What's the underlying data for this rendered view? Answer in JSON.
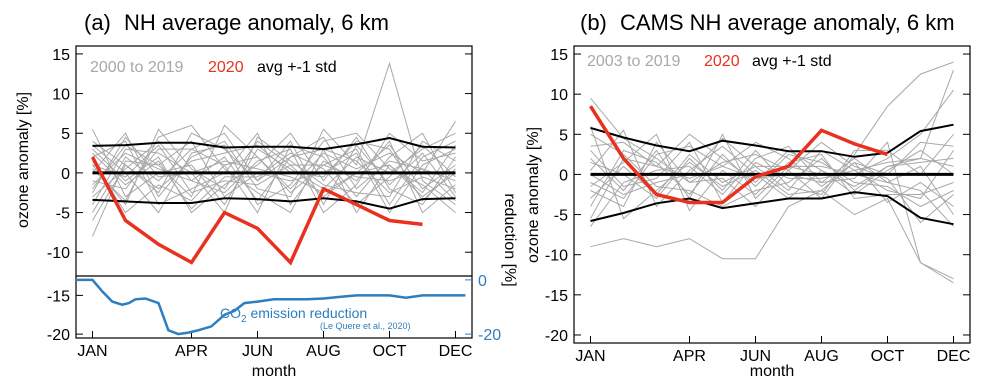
{
  "colors": {
    "gray": "#a8a8a8",
    "red": "#e8311e",
    "black": "#000000",
    "blue": "#2e7dbf"
  },
  "chart_data": [
    {
      "type": "line",
      "panel": "(a)",
      "title": "NH average anomaly, 6 km",
      "xlabel": "month",
      "ylabel": "ozone anomaly [%]",
      "ylim": [
        -13,
        16
      ],
      "xlim": [
        0.5,
        12.5
      ],
      "yticks": [
        "15",
        "10",
        "5",
        "0",
        "-5",
        "-10"
      ],
      "xticks": [
        "JAN",
        "APR",
        "JUN",
        "AUG",
        "OCT",
        "DEC"
      ],
      "legend": {
        "background_label": "2000 to 2019",
        "highlight_label": "2020",
        "avg_label": "avg +-1 std"
      },
      "x": [
        1,
        2,
        3,
        4,
        5,
        6,
        7,
        8,
        9,
        10,
        11,
        12
      ],
      "series": [
        {
          "name": "2020",
          "values": [
            2.0,
            -6.0,
            -9.0,
            -11.3,
            -5.0,
            -7.0,
            -11.3,
            -2.0,
            -4.0,
            -6.0,
            -6.5,
            null
          ]
        },
        {
          "name": "avg +-1 std",
          "role": "mean",
          "values": [
            0,
            0,
            0,
            0,
            0,
            0,
            0,
            0,
            0,
            0,
            0,
            0
          ]
        },
        {
          "name": "avg +-1 std",
          "role": "plus_std",
          "values": [
            3.4,
            3.5,
            3.8,
            3.8,
            3.2,
            3.3,
            3.3,
            3.0,
            3.6,
            4.4,
            3.3,
            3.2
          ]
        },
        {
          "name": "avg +-1 std",
          "role": "minus_std",
          "values": [
            -3.4,
            -3.6,
            -3.8,
            -3.8,
            -3.2,
            -3.3,
            -3.6,
            -3.2,
            -3.6,
            -4.5,
            -3.3,
            -3.2
          ]
        }
      ],
      "background_years": [
        [
          4.0,
          1.0,
          -2.5,
          5.0,
          3.0,
          -1.0,
          2.0,
          4.5,
          -2.0,
          1.5,
          0.5,
          -1.0
        ],
        [
          -2.0,
          3.5,
          1.0,
          -3.0,
          6.0,
          2.0,
          -2.5,
          1.0,
          3.0,
          -4.0,
          2.0,
          4.0
        ],
        [
          1.0,
          -4.0,
          5.5,
          0.5,
          -2.0,
          4.0,
          1.0,
          -3.0,
          0.0,
          3.5,
          -2.0,
          1.0
        ],
        [
          -5.0,
          2.0,
          -1.0,
          3.0,
          1.0,
          -5.0,
          3.5,
          2.0,
          -3.0,
          2.0,
          5.0,
          -2.5
        ],
        [
          3.0,
          -1.0,
          2.0,
          -5.0,
          -1.5,
          1.0,
          5.0,
          -1.0,
          4.5,
          -2.0,
          -4.0,
          2.0
        ],
        [
          0.0,
          5.0,
          -3.0,
          2.0,
          4.0,
          -2.0,
          -3.0,
          5.5,
          1.0,
          13.8,
          -1.0,
          -4.0
        ],
        [
          5.5,
          -3.0,
          0.0,
          1.0,
          -4.0,
          3.0,
          0.5,
          -2.0,
          2.0,
          0.0,
          3.0,
          5.0
        ],
        [
          -3.0,
          0.5,
          4.0,
          -1.0,
          2.0,
          -3.5,
          2.0,
          3.0,
          -5.0,
          1.0,
          -3.0,
          0.0
        ],
        [
          -8.0,
          1.5,
          1.0,
          4.0,
          -3.0,
          0.0,
          -1.0,
          0.0,
          2.5,
          -5.0,
          1.0,
          3.0
        ],
        [
          2.0,
          4.0,
          -4.0,
          -2.0,
          0.0,
          5.0,
          -4.0,
          1.5,
          -1.0,
          4.0,
          -5.0,
          -1.5
        ],
        [
          -1.0,
          -2.0,
          3.0,
          3.0,
          5.0,
          -1.0,
          4.0,
          -4.0,
          3.5,
          -1.5,
          2.5,
          -3.0
        ],
        [
          1.5,
          -5.0,
          -1.5,
          -3.5,
          1.0,
          2.0,
          -2.0,
          2.5,
          0.5,
          2.5,
          0.0,
          6.5
        ],
        [
          -4.0,
          3.0,
          2.5,
          0.0,
          -5.0,
          4.5,
          1.5,
          -1.5,
          -2.5,
          -3.0,
          4.0,
          1.5
        ],
        [
          3.5,
          0.0,
          -5.0,
          2.5,
          3.5,
          -4.0,
          -1.5,
          4.0,
          5.0,
          0.5,
          -1.5,
          -5.0
        ],
        [
          -1.5,
          2.5,
          0.5,
          -1.0,
          -2.5,
          1.5,
          3.0,
          -5.0,
          -1.5,
          5.0,
          1.5,
          2.5
        ],
        [
          0.5,
          -3.5,
          4.5,
          6.0,
          0.5,
          -2.5,
          -5.0,
          3.0,
          1.5,
          -2.5,
          -0.5,
          -2.0
        ],
        [
          -6.0,
          1.0,
          -2.0,
          1.5,
          2.5,
          3.5,
          0.0,
          -0.5,
          4.0,
          3.0,
          -3.5,
          0.5
        ],
        [
          2.5,
          -1.5,
          1.5,
          -4.5,
          -0.5,
          -0.5,
          2.5,
          0.5,
          -4.0,
          -0.5,
          3.5,
          -0.5
        ],
        [
          -2.5,
          4.5,
          -0.5,
          0.0,
          1.5,
          0.5,
          -0.5,
          -2.5,
          0.0,
          1.0,
          -2.5,
          3.5
        ],
        [
          1.0,
          -0.5,
          3.5,
          -2.5,
          -1.0,
          -1.5,
          1.0,
          1.0,
          -0.5,
          -1.0,
          0.5,
          -3.5
        ]
      ]
    },
    {
      "type": "line",
      "panel": "(a) lower",
      "ylim": [
        -20.5,
        -12.5
      ],
      "yticks": [
        "-15",
        "-20"
      ],
      "right_axis_label": "reduction [%]",
      "right_ticks": [
        "0",
        "-20"
      ],
      "annotation": "CO₂ emission reduction",
      "annotation_prefix": "CO",
      "annotation_sub": "2",
      "annotation_suffix": " emission reduction",
      "citation": "(Le Quere et al., 2020)",
      "series": [
        {
          "name": "CO2 emission reduction",
          "x": [
            0.5,
            1.0,
            1.3,
            1.6,
            1.9,
            2.1,
            2.3,
            2.6,
            3.0,
            3.3,
            3.6,
            3.9,
            4.2,
            4.6,
            5.0,
            5.3,
            5.6,
            6.0,
            6.5,
            7.0,
            7.5,
            8.0,
            8.5,
            9.0,
            9.5,
            10.0,
            10.5,
            11.0,
            11.5,
            12.0,
            12.3
          ],
          "values": [
            -13.0,
            -13.0,
            -14.5,
            -15.8,
            -16.2,
            -16.0,
            -15.5,
            -15.4,
            -16.0,
            -19.5,
            -20.0,
            -19.8,
            -19.5,
            -19.0,
            -17.5,
            -17.0,
            -16.0,
            -15.8,
            -15.5,
            -15.5,
            -15.5,
            -15.4,
            -15.2,
            -15.0,
            -15.0,
            -15.0,
            -15.3,
            -15.0,
            -15.0,
            -15.0,
            -15.0
          ]
        }
      ]
    },
    {
      "type": "line",
      "panel": "(b)",
      "title": "CAMS NH average anomaly, 6 km",
      "xlabel": "month",
      "ylabel": "ozone anomaly [%]",
      "ylim": [
        -21,
        16
      ],
      "xlim": [
        0.5,
        12.5
      ],
      "yticks": [
        "15",
        "10",
        "5",
        "0",
        "-5",
        "-10",
        "-15",
        "-20"
      ],
      "xticks": [
        "JAN",
        "APR",
        "JUN",
        "AUG",
        "OCT",
        "DEC"
      ],
      "legend": {
        "background_label": "2003 to 2019",
        "highlight_label": "2020",
        "avg_label": "avg +-1 std"
      },
      "x": [
        1,
        2,
        3,
        4,
        5,
        6,
        7,
        8,
        9,
        10,
        11,
        12
      ],
      "series": [
        {
          "name": "2020",
          "values": [
            8.5,
            2.0,
            -2.5,
            -3.5,
            -3.5,
            -0.3,
            1.0,
            5.5,
            3.8,
            2.5,
            null,
            null
          ]
        },
        {
          "name": "avg +-1 std",
          "role": "mean",
          "values": [
            0,
            0,
            0,
            0,
            0,
            0,
            0,
            0,
            0,
            0,
            0,
            0
          ]
        },
        {
          "name": "avg +-1 std",
          "role": "plus_std",
          "values": [
            5.8,
            4.6,
            3.6,
            2.9,
            4.2,
            3.6,
            2.9,
            2.9,
            2.2,
            2.7,
            5.4,
            6.2
          ]
        },
        {
          "name": "avg +-1 std",
          "role": "minus_std",
          "values": [
            -5.8,
            -4.8,
            -3.6,
            -3.0,
            -4.2,
            -3.6,
            -3.0,
            -3.0,
            -2.2,
            -2.7,
            -5.4,
            -6.2
          ]
        }
      ],
      "background_years": [
        [
          3.5,
          4.0,
          1.0,
          5.0,
          2.0,
          -1.0,
          3.0,
          0.5,
          -1.5,
          1.0,
          2.0,
          13.0
        ],
        [
          -9.0,
          -8.0,
          -9.0,
          -8.0,
          -10.5,
          -10.5,
          -4.0,
          -2.0,
          -5.0,
          -3.0,
          -11.0,
          -13.5
        ],
        [
          9.5,
          4.5,
          2.0,
          -1.0,
          1.5,
          2.5,
          0.5,
          -3.0,
          2.5,
          8.5,
          12.5,
          14.0
        ],
        [
          -3.0,
          1.0,
          -2.5,
          2.5,
          -1.0,
          1.0,
          -2.0,
          3.0,
          0.5,
          -2.0,
          -3.0,
          3.0
        ],
        [
          2.0,
          -2.0,
          3.0,
          -3.0,
          5.0,
          -3.0,
          1.0,
          1.0,
          0.0,
          2.0,
          5.0,
          10.5
        ],
        [
          -6.5,
          -1.0,
          0.5,
          1.0,
          -2.5,
          2.0,
          3.5,
          -1.0,
          2.0,
          -1.0,
          -2.0,
          -6.5
        ],
        [
          5.0,
          2.5,
          -1.5,
          -2.0,
          -4.0,
          -2.0,
          -1.0,
          2.0,
          -2.0,
          1.0,
          1.5,
          2.0
        ],
        [
          -1.0,
          -3.0,
          2.5,
          3.5,
          1.0,
          4.0,
          2.0,
          -1.5,
          1.5,
          -3.5,
          -1.0,
          -4.0
        ],
        [
          0.5,
          5.5,
          -4.0,
          0.5,
          3.5,
          0.0,
          -3.0,
          0.5,
          -2.5,
          0.5,
          3.0,
          0.0
        ],
        [
          -2.0,
          -4.0,
          4.0,
          -1.0,
          -0.5,
          -4.0,
          0.5,
          4.0,
          1.0,
          -0.5,
          -6.0,
          -2.5
        ],
        [
          1.5,
          0.0,
          -3.0,
          2.0,
          -2.0,
          3.0,
          -1.5,
          -2.5,
          3.0,
          3.0,
          0.0,
          5.0
        ],
        [
          -4.0,
          3.0,
          1.5,
          -2.5,
          2.5,
          -1.5,
          2.5,
          1.5,
          -1.0,
          -1.5,
          -4.0,
          -2.0
        ],
        [
          3.0,
          -1.5,
          -0.5,
          4.0,
          -3.5,
          1.5,
          -0.5,
          -0.5,
          0.5,
          1.5,
          2.0,
          1.0
        ],
        [
          -1.5,
          1.5,
          5.0,
          -4.5,
          0.5,
          -2.5,
          1.5,
          2.5,
          -3.0,
          -2.5,
          -2.5,
          -1.0
        ],
        [
          6.0,
          -5.5,
          -2.0,
          1.5,
          -1.5,
          0.5,
          -2.5,
          -2.0,
          1.5,
          0.0,
          4.0,
          3.5
        ],
        [
          -5.5,
          2.0,
          1.0,
          -0.5,
          1.0,
          -0.5,
          0.0,
          -1.0,
          -0.5,
          4.0,
          -11.0,
          -13.0
        ],
        [
          0.0,
          -2.5,
          -1.0,
          0.0,
          4.5,
          1.0,
          1.0,
          0.0,
          0.0,
          -1.0,
          1.0,
          -5.0
        ]
      ]
    }
  ]
}
